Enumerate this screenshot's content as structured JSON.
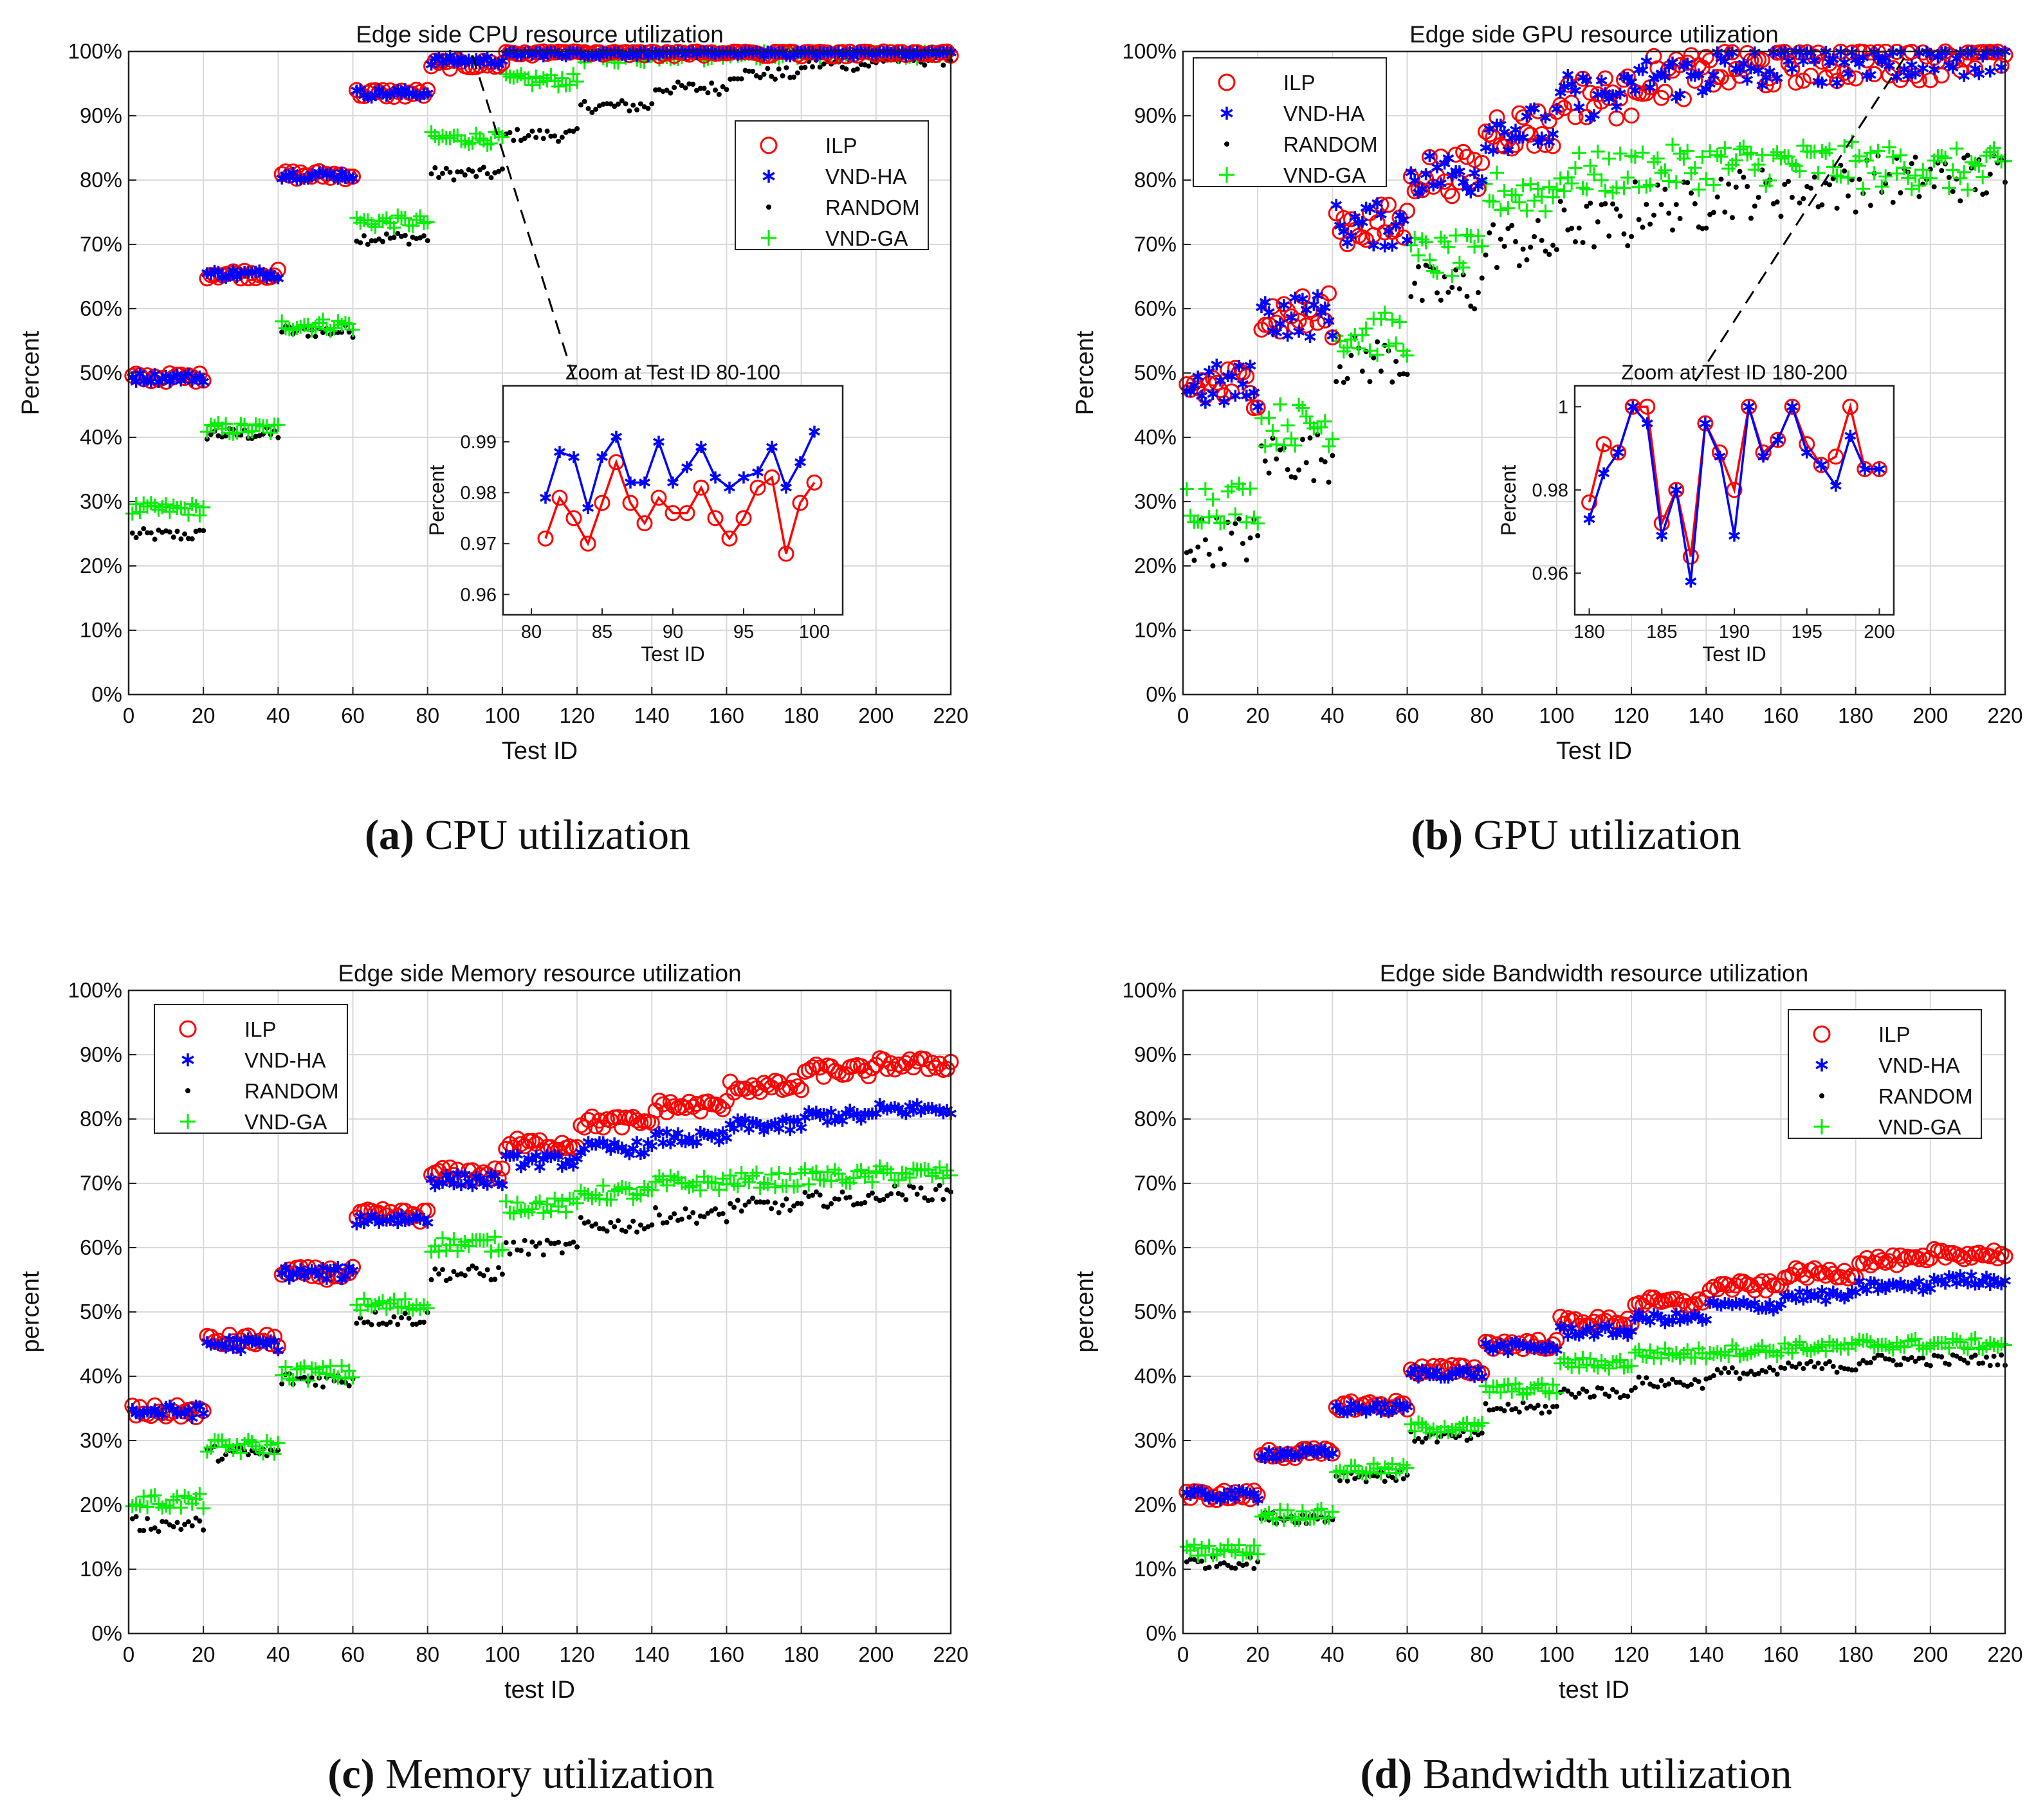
{
  "colors": {
    "ILP": "#ff0000",
    "VND-HA": "#0000ff",
    "RANDOM": "#000000",
    "VND-GA": "#00ee00",
    "grid": "#d9d9d9"
  },
  "chart_data": [
    {
      "type": "scatter",
      "title": "Edge side CPU resource utilization",
      "xlabel": "Test ID",
      "ylabel": "Percent",
      "xlim": [
        0,
        220
      ],
      "ylim": [
        0,
        100
      ],
      "xticks": [
        "0",
        "20",
        "40",
        "60",
        "80",
        "100",
        "120",
        "140",
        "160",
        "180",
        "200",
        "220"
      ],
      "yticks": [
        "0%",
        "10%",
        "20%",
        "30%",
        "40%",
        "50%",
        "60%",
        "70%",
        "80%",
        "90%",
        "100%"
      ],
      "legend": [
        "ILP",
        "VND-HA",
        "RANDOM",
        "VND-GA"
      ],
      "legend_position": "top-right",
      "caption": {
        "letter": "(a)",
        "text": " CPU utilization"
      },
      "group_levels": {
        "ILP": [
          49.3,
          65.4,
          80.8,
          93.5,
          98.0,
          99.9,
          99.9,
          99.9,
          99.9,
          99.9,
          99.9
        ],
        "VND-HA": [
          49.3,
          65.4,
          80.8,
          93.5,
          98.6,
          99.9,
          99.9,
          99.9,
          99.9,
          99.9,
          99.9
        ],
        "RANDOM": [
          24.8,
          40.5,
          56.5,
          71.0,
          81.0,
          87.0,
          91.5,
          94.3,
          96.5,
          98.0,
          98.8
        ],
        "VND-GA": [
          28.8,
          41.3,
          57.5,
          73.5,
          86.5,
          95.5,
          99.2,
          99.6,
          99.8,
          99.9,
          99.9
        ]
      },
      "noise": {
        "ILP": 0.7,
        "VND-HA": 0.7,
        "RANDOM": 1.0,
        "VND-GA": 1.0
      },
      "inset": {
        "title": "Zoom at Test ID 80-100",
        "xlabel": "Test ID",
        "ylabel": "Percent",
        "xlim": [
          78,
          102
        ],
        "ylim": [
          0.956,
          1.001
        ],
        "xticks": [
          "80",
          "85",
          "90",
          "95",
          "100"
        ],
        "yticks": [
          "0.96",
          "0.97",
          "0.98",
          "0.99"
        ],
        "x": [
          81,
          82,
          83,
          84,
          85,
          86,
          87,
          88,
          89,
          90,
          91,
          92,
          93,
          94,
          95,
          96,
          97,
          98,
          99,
          100
        ],
        "ILP": [
          0.971,
          0.979,
          0.975,
          0.97,
          0.978,
          0.986,
          0.978,
          0.974,
          0.979,
          0.976,
          0.976,
          0.981,
          0.975,
          0.971,
          0.975,
          0.981,
          0.983,
          0.968,
          0.978,
          0.982
        ],
        "VND-HA": [
          0.979,
          0.988,
          0.987,
          0.977,
          0.987,
          0.991,
          0.982,
          0.982,
          0.99,
          0.982,
          0.985,
          0.989,
          0.983,
          0.981,
          0.983,
          0.984,
          0.989,
          0.981,
          0.986,
          0.992
        ]
      }
    },
    {
      "type": "scatter",
      "title": "Edge side GPU resource utilization",
      "xlabel": "Test ID",
      "ylabel": "Percent",
      "xlim": [
        0,
        220
      ],
      "ylim": [
        0,
        100
      ],
      "xticks": [
        "0",
        "20",
        "40",
        "60",
        "80",
        "100",
        "120",
        "140",
        "160",
        "180",
        "200",
        "220"
      ],
      "yticks": [
        "0%",
        "10%",
        "20%",
        "30%",
        "40%",
        "50%",
        "60%",
        "70%",
        "80%",
        "90%",
        "100%"
      ],
      "legend": [
        "ILP",
        "VND-HA",
        "RANDOM",
        "VND-GA"
      ],
      "legend_position": "top-left",
      "caption": {
        "letter": "(b)",
        "text": " GPU utilization"
      },
      "group_levels": {
        "ILP": [
          48.0,
          59.0,
          73.0,
          81.0,
          88.0,
          93.0,
          96.0,
          97.5,
          98.5,
          99.0,
          99.5
        ],
        "VND-HA": [
          48.0,
          59.0,
          73.0,
          81.0,
          88.0,
          93.0,
          96.0,
          97.5,
          98.5,
          99.0,
          99.5
        ],
        "RANDOM": [
          24.0,
          37.0,
          52.0,
          63.0,
          70.0,
          73.0,
          76.0,
          78.0,
          79.0,
          80.0,
          80.5
        ],
        "VND-GA": [
          30.0,
          42.0,
          56.0,
          68.0,
          78.0,
          81.0,
          82.0,
          82.5,
          82.5,
          82.0,
          81.5
        ]
      },
      "noise": {
        "ILP": 3.5,
        "VND-HA": 3.5,
        "RANDOM": 4.0,
        "VND-GA": 3.5
      },
      "inset": {
        "title": "Zoom at Test ID 180-200",
        "xlabel": "Test ID",
        "ylabel": "Percent",
        "xlim": [
          179,
          201
        ],
        "ylim": [
          0.95,
          1.005
        ],
        "xticks": [
          "180",
          "185",
          "190",
          "195",
          "200"
        ],
        "yticks": [
          "0.96",
          "0.98",
          "1"
        ],
        "x": [
          180,
          181,
          182,
          183,
          184,
          185,
          186,
          187,
          188,
          189,
          190,
          191,
          192,
          193,
          194,
          195,
          196,
          197,
          198,
          199,
          200
        ],
        "ILP": [
          0.977,
          0.991,
          0.989,
          1.0,
          1.0,
          0.972,
          0.98,
          0.964,
          0.996,
          0.989,
          0.98,
          1.0,
          0.989,
          0.992,
          1.0,
          0.991,
          0.986,
          0.988,
          1.0,
          0.985,
          0.985
        ],
        "VND-HA": [
          0.973,
          0.984,
          0.989,
          1.0,
          0.996,
          0.969,
          0.98,
          0.958,
          0.996,
          0.988,
          0.969,
          1.0,
          0.988,
          0.992,
          1.0,
          0.989,
          0.986,
          0.981,
          0.993,
          0.985,
          0.985
        ]
      }
    },
    {
      "type": "scatter",
      "title": "Edge side Memory resource utilization",
      "xlabel": "test ID",
      "ylabel": "percent",
      "xlim": [
        0,
        220
      ],
      "ylim": [
        0,
        100
      ],
      "xticks": [
        "0",
        "20",
        "40",
        "60",
        "80",
        "100",
        "120",
        "140",
        "160",
        "180",
        "200",
        "220"
      ],
      "yticks": [
        "0%",
        "10%",
        "20%",
        "30%",
        "40%",
        "50%",
        "60%",
        "70%",
        "80%",
        "90%",
        "100%"
      ],
      "legend": [
        "ILP",
        "VND-HA",
        "RANDOM",
        "VND-GA"
      ],
      "legend_position": "top-left",
      "caption": {
        "letter": "(c)",
        "text": " Memory utilization"
      },
      "group_levels": {
        "ILP": [
          34.5,
          45.5,
          56.0,
          65.0,
          71.5,
          76.0,
          79.5,
          82.0,
          85.0,
          87.5,
          88.5
        ],
        "VND-HA": [
          34.5,
          45.0,
          56.0,
          64.5,
          70.5,
          73.5,
          75.5,
          77.0,
          79.0,
          80.5,
          81.5
        ],
        "RANDOM": [
          17.0,
          28.0,
          39.5,
          49.0,
          56.0,
          60.0,
          63.5,
          65.0,
          66.5,
          67.5,
          68.5
        ],
        "VND-GA": [
          20.5,
          29.0,
          40.5,
          51.0,
          60.5,
          66.5,
          68.5,
          70.0,
          70.5,
          71.0,
          71.5
        ]
      },
      "noise": {
        "ILP": 1.0,
        "VND-HA": 1.0,
        "RANDOM": 1.2,
        "VND-GA": 1.2
      }
    },
    {
      "type": "scatter",
      "title": "Edge side Bandwidth resource utilization",
      "xlabel": "test ID",
      "ylabel": "percent",
      "xlim": [
        0,
        220
      ],
      "ylim": [
        0,
        100
      ],
      "xticks": [
        "0",
        "20",
        "40",
        "60",
        "80",
        "100",
        "120",
        "140",
        "160",
        "180",
        "200",
        "220"
      ],
      "yticks": [
        "0%",
        "10%",
        "20%",
        "30%",
        "40%",
        "50%",
        "60%",
        "70%",
        "80%",
        "90%",
        "100%"
      ],
      "legend": [
        "ILP",
        "VND-HA",
        "RANDOM",
        "VND-GA"
      ],
      "legend_position": "top-right",
      "caption": {
        "letter": "(d)",
        "text": " Bandwidth utilization"
      },
      "group_levels": {
        "ILP": [
          21.5,
          28.0,
          35.5,
          41.0,
          45.0,
          48.5,
          51.5,
          54.0,
          56.0,
          58.0,
          59.0
        ],
        "VND-HA": [
          21.5,
          28.0,
          35.0,
          40.5,
          44.5,
          47.0,
          49.0,
          51.0,
          52.5,
          54.0,
          55.0
        ],
        "RANDOM": [
          11.0,
          18.0,
          24.5,
          30.5,
          35.0,
          37.5,
          39.0,
          40.5,
          41.5,
          42.5,
          42.5
        ],
        "VND-GA": [
          13.0,
          18.5,
          25.5,
          32.0,
          38.0,
          42.0,
          43.5,
          44.0,
          44.5,
          45.0,
          45.0
        ]
      },
      "noise": {
        "ILP": 0.8,
        "VND-HA": 0.8,
        "RANDOM": 0.9,
        "VND-GA": 0.9
      }
    }
  ]
}
